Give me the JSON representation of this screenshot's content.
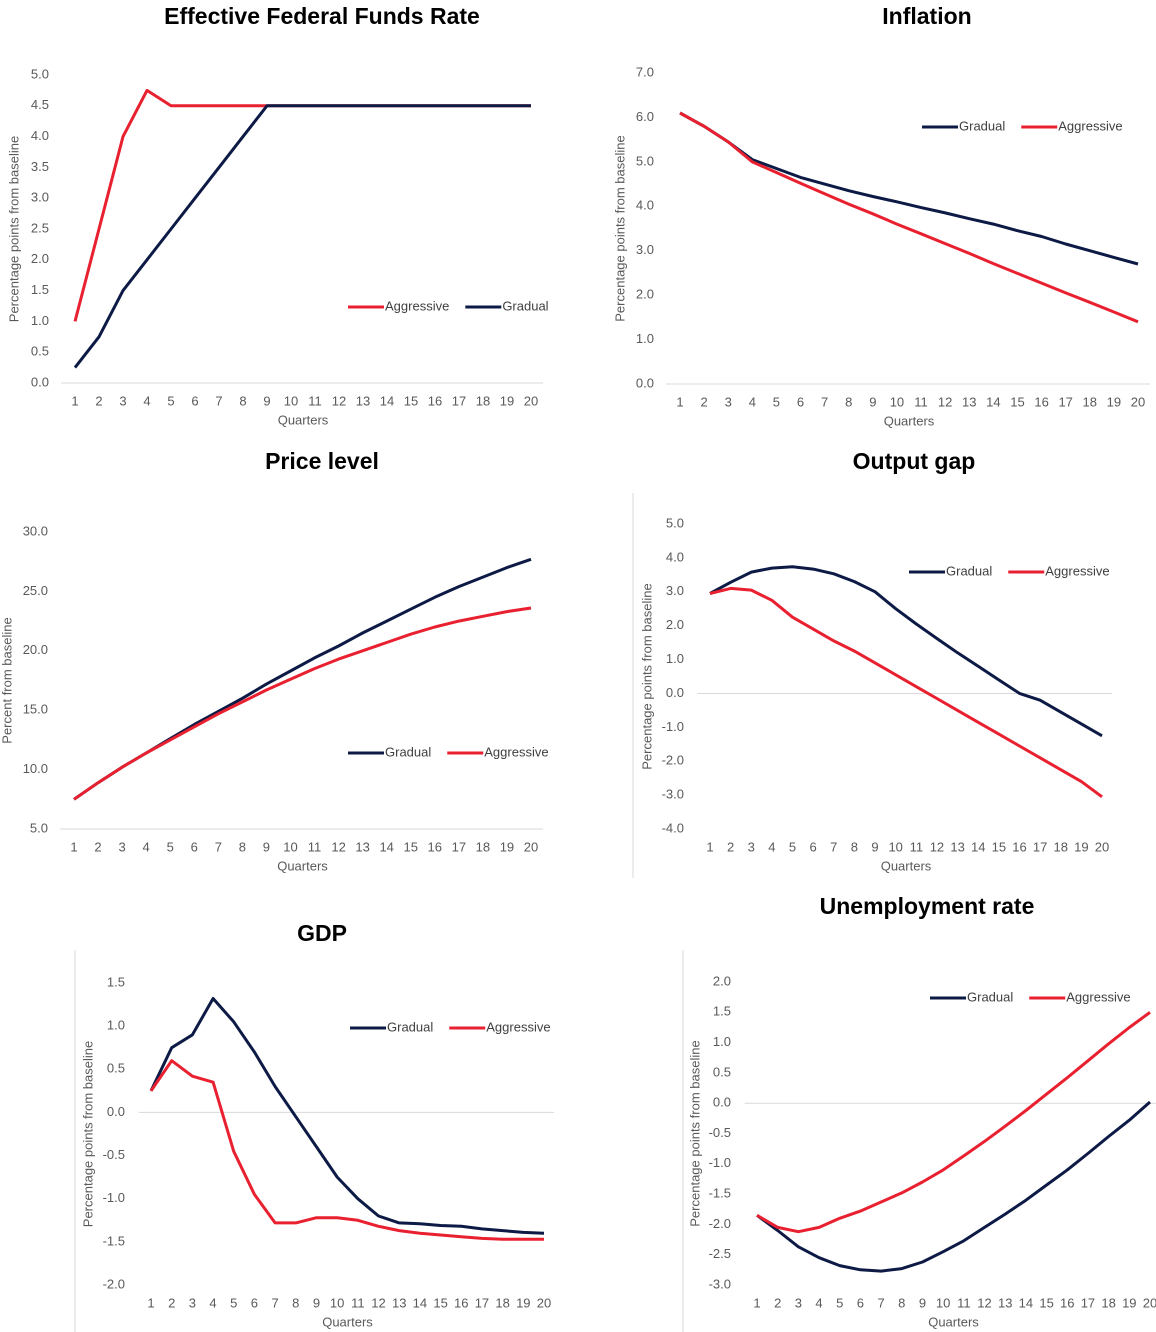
{
  "chart_data": [
    {
      "type": "line",
      "title": "Effective Federal Funds Rate",
      "xlabel": "Quarters",
      "ylabel": "Percentage points from baseline",
      "categories": [
        "1",
        "2",
        "3",
        "4",
        "5",
        "6",
        "7",
        "8",
        "9",
        "10",
        "11",
        "12",
        "13",
        "14",
        "15",
        "16",
        "17",
        "18",
        "19",
        "20"
      ],
      "ylim": [
        0,
        5
      ],
      "yticks": [
        {
          "value": 0,
          "label": "0.0"
        },
        {
          "value": 0.5,
          "label": "0.5"
        },
        {
          "value": 1,
          "label": "1.0"
        },
        {
          "value": 1.5,
          "label": "1.5"
        },
        {
          "value": 2,
          "label": "2.0"
        },
        {
          "value": 2.5,
          "label": "2.5"
        },
        {
          "value": 3,
          "label": "3.0"
        },
        {
          "value": 3.5,
          "label": "3.5"
        },
        {
          "value": 4,
          "label": "4.0"
        },
        {
          "value": 4.5,
          "label": "4.5"
        },
        {
          "value": 5,
          "label": "5.0"
        }
      ],
      "series": [
        {
          "name": "Aggressive",
          "color": "#e8202f",
          "values": [
            1.0,
            2.5,
            4.0,
            4.75,
            4.5,
            4.5,
            4.5,
            4.5,
            4.5,
            4.5,
            4.5,
            4.5,
            4.5,
            4.5,
            4.5,
            4.5,
            4.5,
            4.5,
            4.5,
            4.5
          ]
        },
        {
          "name": "Gradual",
          "color": "#0c1a45",
          "values": [
            0.25,
            0.75,
            1.5,
            2.0,
            2.5,
            3.0,
            3.5,
            4.0,
            4.5,
            4.5,
            4.5,
            4.5,
            4.5,
            4.5,
            4.5,
            4.5,
            4.5,
            4.5,
            4.5,
            4.5
          ]
        }
      ]
    },
    {
      "type": "line",
      "title": "Inflation",
      "xlabel": "Quarters",
      "ylabel": "Percentage points from baseline",
      "categories": [
        "1",
        "2",
        "3",
        "4",
        "5",
        "6",
        "7",
        "8",
        "9",
        "10",
        "11",
        "12",
        "13",
        "14",
        "15",
        "16",
        "17",
        "18",
        "19",
        "20"
      ],
      "ylim": [
        0,
        7
      ],
      "yticks": [
        {
          "value": 0,
          "label": "0.0"
        },
        {
          "value": 1,
          "label": "1.0"
        },
        {
          "value": 2,
          "label": "2.0"
        },
        {
          "value": 3,
          "label": "3.0"
        },
        {
          "value": 4,
          "label": "4.0"
        },
        {
          "value": 5,
          "label": "5.0"
        },
        {
          "value": 6,
          "label": "6.0"
        },
        {
          "value": 7,
          "label": "7.0"
        }
      ],
      "series": [
        {
          "name": "Gradual",
          "color": "#0c1a45",
          "values": [
            6.1,
            5.8,
            5.45,
            5.05,
            4.85,
            4.65,
            4.5,
            4.35,
            4.22,
            4.1,
            3.97,
            3.85,
            3.72,
            3.6,
            3.45,
            3.32,
            3.15,
            3.0,
            2.85,
            2.7
          ]
        },
        {
          "name": "Aggressive",
          "color": "#e8202f",
          "values": [
            6.1,
            5.8,
            5.45,
            5.0,
            4.76,
            4.52,
            4.28,
            4.05,
            3.83,
            3.6,
            3.38,
            3.16,
            2.94,
            2.71,
            2.49,
            2.27,
            2.05,
            1.84,
            1.62,
            1.4
          ]
        }
      ]
    },
    {
      "type": "line",
      "title": "Price level",
      "xlabel": "Quarters",
      "ylabel": "Percent from baseline",
      "categories": [
        "1",
        "2",
        "3",
        "4",
        "5",
        "6",
        "7",
        "8",
        "9",
        "10",
        "11",
        "12",
        "13",
        "14",
        "15",
        "16",
        "17",
        "18",
        "19",
        "20"
      ],
      "ylim": [
        5,
        30
      ],
      "yticks": [
        {
          "value": 5,
          "label": "5.0"
        },
        {
          "value": 10,
          "label": "10.0"
        },
        {
          "value": 15,
          "label": "15.0"
        },
        {
          "value": 20,
          "label": "20.0"
        },
        {
          "value": 25,
          "label": "25.0"
        },
        {
          "value": 30,
          "label": "30.0"
        }
      ],
      "series": [
        {
          "name": "Gradual",
          "color": "#0c1a45",
          "values": [
            7.5,
            8.9,
            10.2,
            11.4,
            12.6,
            13.8,
            14.9,
            16.0,
            17.2,
            18.3,
            19.4,
            20.4,
            21.5,
            22.5,
            23.5,
            24.5,
            25.4,
            26.2,
            27.0,
            27.7
          ]
        },
        {
          "name": "Aggressive",
          "color": "#e8202f",
          "values": [
            7.5,
            8.9,
            10.2,
            11.4,
            12.5,
            13.6,
            14.7,
            15.7,
            16.7,
            17.6,
            18.5,
            19.3,
            20.0,
            20.7,
            21.4,
            22.0,
            22.5,
            22.9,
            23.3,
            23.6
          ]
        }
      ]
    },
    {
      "type": "line",
      "title": "Output gap",
      "xlabel": "Quarters",
      "ylabel": "Percentage points from baseline",
      "categories": [
        "1",
        "2",
        "3",
        "4",
        "5",
        "6",
        "7",
        "8",
        "9",
        "10",
        "11",
        "12",
        "13",
        "14",
        "15",
        "16",
        "17",
        "18",
        "19",
        "20"
      ],
      "ylim": [
        -4,
        5
      ],
      "yticks": [
        {
          "value": -4,
          "label": "-4.0"
        },
        {
          "value": -3,
          "label": "-3.0"
        },
        {
          "value": -2,
          "label": "-2.0"
        },
        {
          "value": -1,
          "label": "-1.0"
        },
        {
          "value": 0,
          "label": "0.0"
        },
        {
          "value": 1,
          "label": "1.0"
        },
        {
          "value": 2,
          "label": "2.0"
        },
        {
          "value": 3,
          "label": "3.0"
        },
        {
          "value": 4,
          "label": "4.0"
        },
        {
          "value": 5,
          "label": "5.0"
        }
      ],
      "series": [
        {
          "name": "Gradual",
          "color": "#0c1a45",
          "values": [
            2.95,
            3.28,
            3.58,
            3.7,
            3.74,
            3.67,
            3.53,
            3.3,
            3.0,
            2.5,
            2.05,
            1.62,
            1.2,
            0.8,
            0.4,
            0.0,
            -0.2,
            -0.55,
            -0.9,
            -1.25
          ]
        },
        {
          "name": "Aggressive",
          "color": "#e8202f",
          "values": [
            2.95,
            3.1,
            3.05,
            2.75,
            2.25,
            1.9,
            1.55,
            1.25,
            0.9,
            0.55,
            0.2,
            -0.15,
            -0.5,
            -0.85,
            -1.2,
            -1.55,
            -1.9,
            -2.25,
            -2.6,
            -3.05
          ]
        }
      ]
    },
    {
      "type": "line",
      "title": "GDP",
      "xlabel": "Quarters",
      "ylabel": "Percentage points from baseline",
      "categories": [
        "1",
        "2",
        "3",
        "4",
        "5",
        "6",
        "7",
        "8",
        "9",
        "10",
        "11",
        "12",
        "13",
        "14",
        "15",
        "16",
        "17",
        "18",
        "19",
        "20"
      ],
      "ylim": [
        -2,
        1.5
      ],
      "yticks": [
        {
          "value": -2,
          "label": "-2.0"
        },
        {
          "value": -1.5,
          "label": "-1.5"
        },
        {
          "value": -1,
          "label": "-1.0"
        },
        {
          "value": -0.5,
          "label": "-0.5"
        },
        {
          "value": 0,
          "label": "0.0"
        },
        {
          "value": 0.5,
          "label": "0.5"
        },
        {
          "value": 1,
          "label": "1.0"
        },
        {
          "value": 1.5,
          "label": "1.5"
        }
      ],
      "series": [
        {
          "name": "Gradual",
          "color": "#0c1a45",
          "values": [
            0.25,
            0.75,
            0.9,
            1.32,
            1.05,
            0.7,
            0.3,
            -0.05,
            -0.4,
            -0.75,
            -1.0,
            -1.2,
            -1.28,
            -1.29,
            -1.31,
            -1.32,
            -1.35,
            -1.37,
            -1.39,
            -1.4
          ]
        },
        {
          "name": "Aggressive",
          "color": "#e8202f",
          "values": [
            0.25,
            0.6,
            0.42,
            0.35,
            -0.45,
            -0.95,
            -1.28,
            -1.28,
            -1.22,
            -1.22,
            -1.25,
            -1.32,
            -1.37,
            -1.4,
            -1.42,
            -1.44,
            -1.46,
            -1.47,
            -1.47,
            -1.47
          ]
        }
      ]
    },
    {
      "type": "line",
      "title": "Unemployment rate",
      "xlabel": "Quarters",
      "ylabel": "Percentage points from baseline",
      "categories": [
        "1",
        "2",
        "3",
        "4",
        "5",
        "6",
        "7",
        "8",
        "9",
        "10",
        "11",
        "12",
        "13",
        "14",
        "15",
        "16",
        "17",
        "18",
        "19",
        "20"
      ],
      "ylim": [
        -3,
        2
      ],
      "yticks": [
        {
          "value": -3,
          "label": "-3.0"
        },
        {
          "value": -2.5,
          "label": "-2.5"
        },
        {
          "value": -2,
          "label": "-2.0"
        },
        {
          "value": -1.5,
          "label": "-1.5"
        },
        {
          "value": -1,
          "label": "-1.0"
        },
        {
          "value": -0.5,
          "label": "-0.5"
        },
        {
          "value": 0,
          "label": "0.0"
        },
        {
          "value": 0.5,
          "label": "0.5"
        },
        {
          "value": 1,
          "label": "1.0"
        },
        {
          "value": 1.5,
          "label": "1.5"
        },
        {
          "value": 2,
          "label": "2.0"
        }
      ],
      "series": [
        {
          "name": "Gradual",
          "color": "#0c1a45",
          "values": [
            -1.85,
            -2.1,
            -2.37,
            -2.55,
            -2.68,
            -2.75,
            -2.77,
            -2.73,
            -2.62,
            -2.45,
            -2.27,
            -2.05,
            -1.83,
            -1.6,
            -1.35,
            -1.1,
            -0.83,
            -0.55,
            -0.28,
            0.02
          ]
        },
        {
          "name": "Aggressive",
          "color": "#e8202f",
          "values": [
            -1.85,
            -2.05,
            -2.12,
            -2.05,
            -1.9,
            -1.78,
            -1.63,
            -1.48,
            -1.3,
            -1.1,
            -0.87,
            -0.63,
            -0.38,
            -0.12,
            0.15,
            0.42,
            0.7,
            0.98,
            1.25,
            1.5
          ]
        }
      ]
    }
  ]
}
